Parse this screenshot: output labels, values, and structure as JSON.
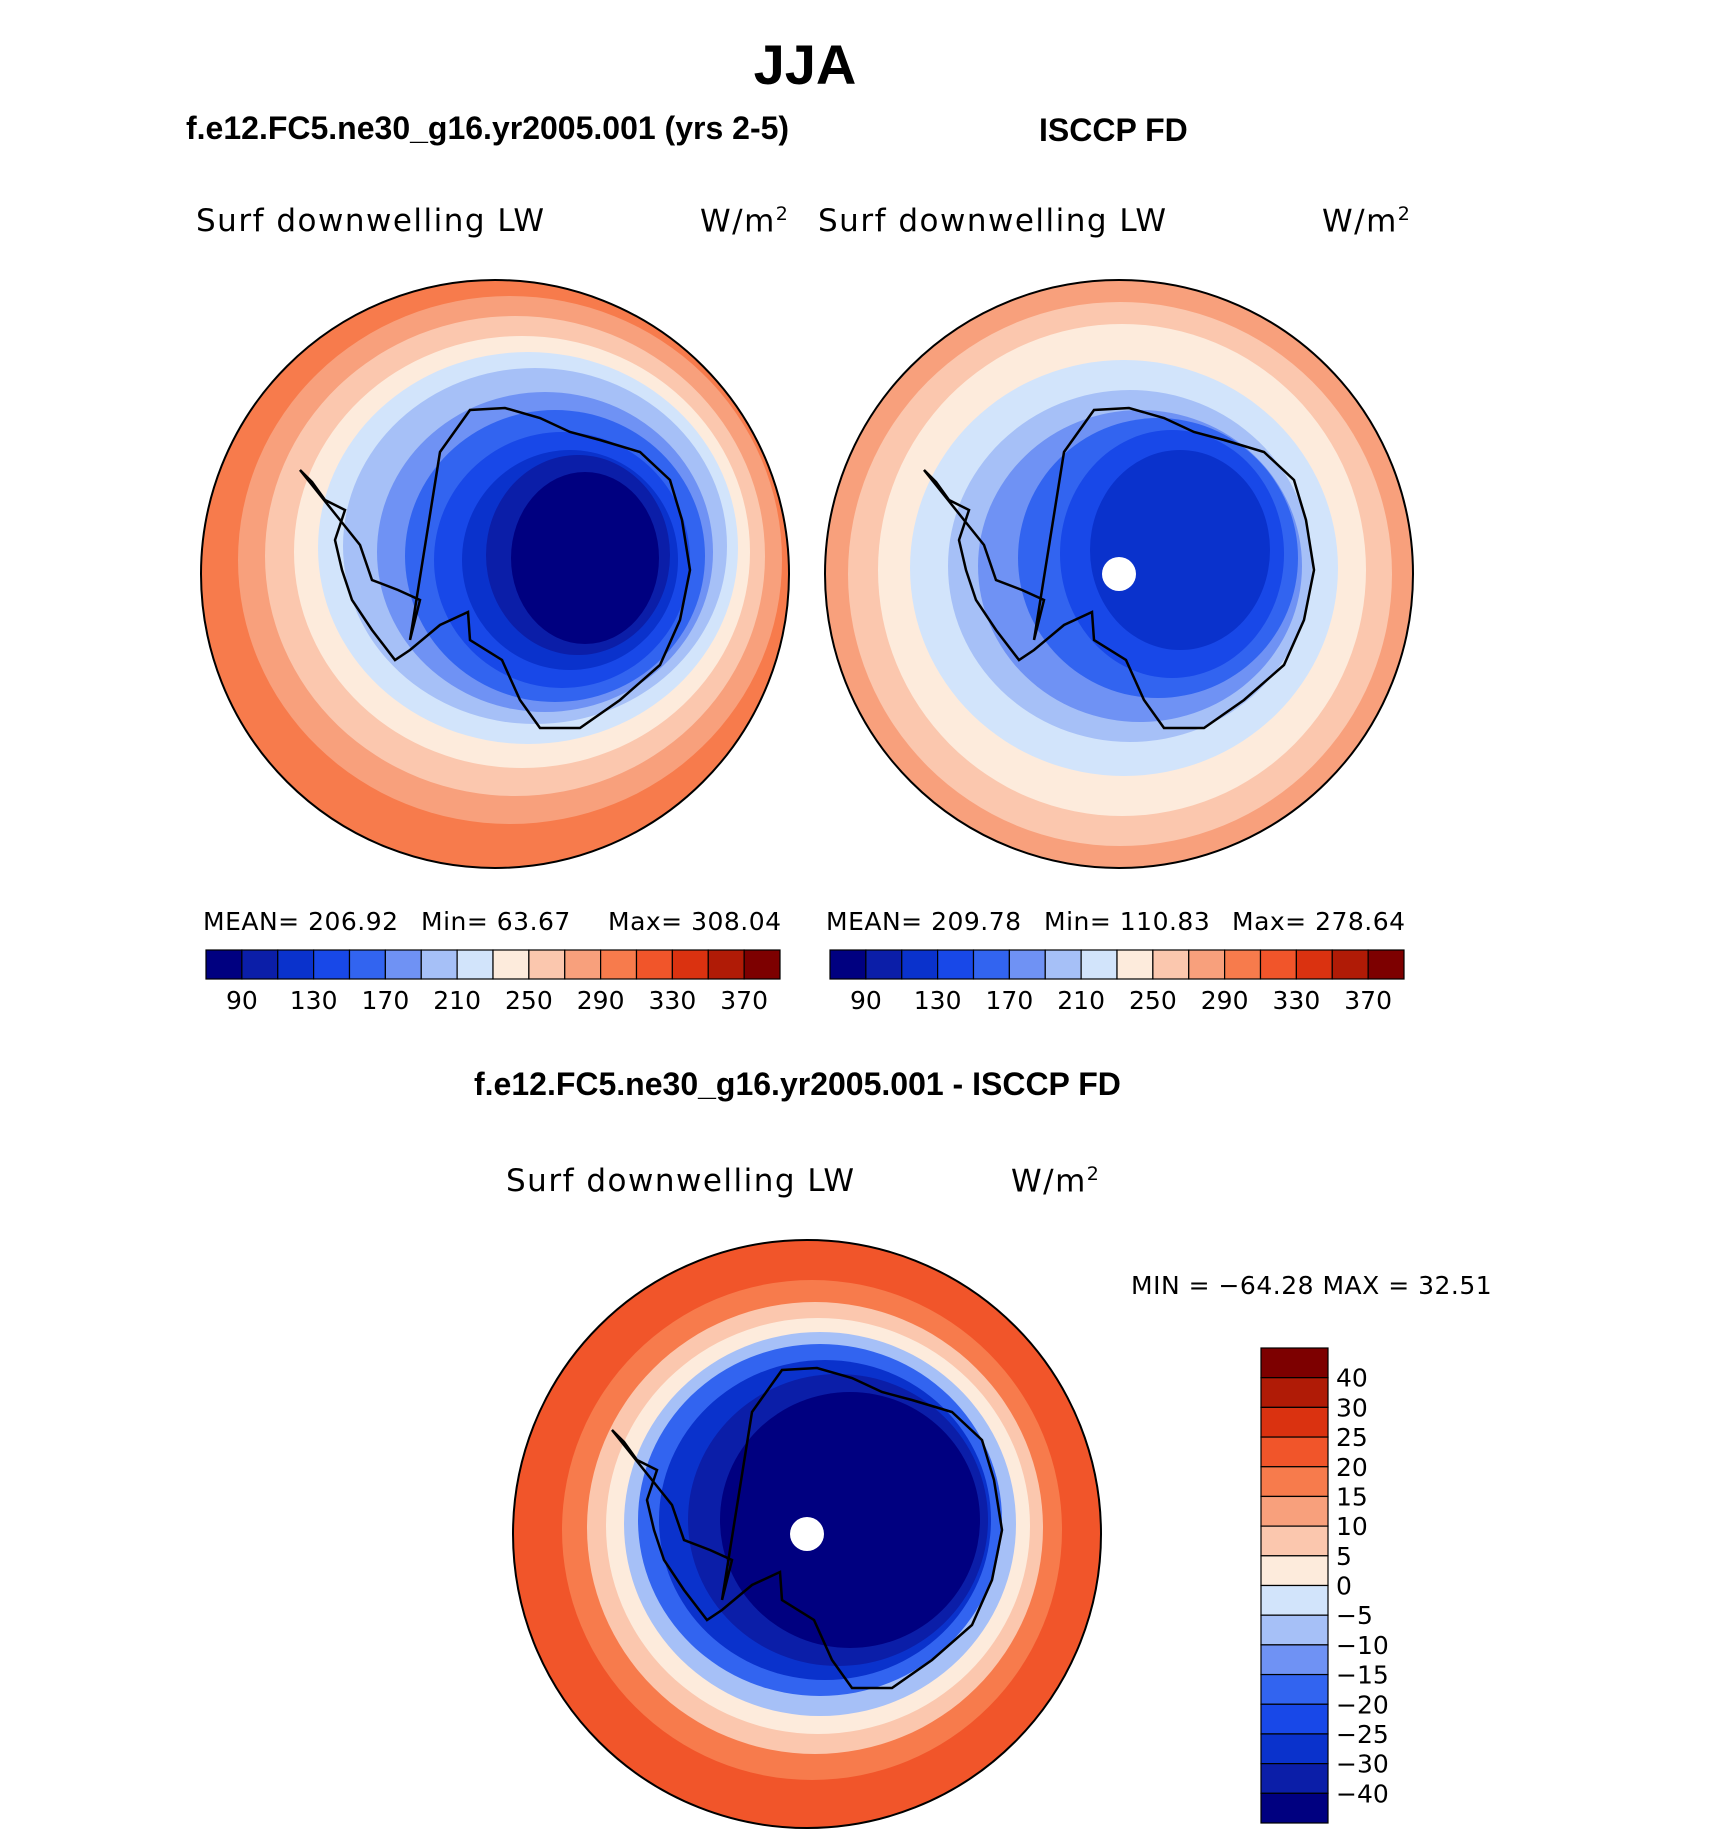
{
  "figure": {
    "season": "JJA",
    "left_title": "f.e12.FC5.ne30_g16.yr2005.001 (yrs 2-5)",
    "right_title": "ISCCP FD",
    "diff_title": "f.e12.FC5.ne30_g16.yr2005.001 - ISCCP FD"
  },
  "panels": {
    "model": {
      "var_label": "Surf downwelling LW",
      "units_base": "W/m",
      "units_exp": "2",
      "mean_text": "MEAN= 206.92",
      "min_text": "Min=  63.67",
      "max_text": "Max= 308.04"
    },
    "obs": {
      "var_label": "Surf downwelling LW",
      "units_base": "W/m",
      "units_exp": "2",
      "mean_text": "MEAN= 209.78",
      "min_text": "Min= 110.83",
      "max_text": "Max= 278.64"
    },
    "diff": {
      "var_label": "Surf downwelling LW",
      "units_base": "W/m",
      "units_exp": "2",
      "minmax_text": "MIN = −64.28 MAX =  32.51"
    }
  },
  "chart_data": [
    {
      "type": "heatmap",
      "projection": "south-polar-stereographic",
      "title": "f.e12.FC5.ne30_g16.yr2005.001 (yrs 2-5)",
      "variable": "Surf downwelling LW",
      "units": "W/m2",
      "mean": 206.92,
      "min": 63.67,
      "max": 308.04,
      "colorbar": {
        "orientation": "horizontal",
        "levels": [
          90,
          110,
          130,
          150,
          170,
          190,
          210,
          230,
          250,
          270,
          290,
          310,
          330,
          350,
          370
        ],
        "tick_labels": [
          "90",
          "130",
          "170",
          "210",
          "250",
          "290",
          "330",
          "370"
        ],
        "colors": [
          "#000080",
          "#0b1ea8",
          "#0a32cc",
          "#1848e8",
          "#3264f0",
          "#6f92f4",
          "#a6c0f7",
          "#d2e4fb",
          "#fdebdc",
          "#fbc7ae",
          "#f8a07c",
          "#f77b4c",
          "#f1552a",
          "#da3210",
          "#b01b06",
          "#7d0000"
        ]
      }
    },
    {
      "type": "heatmap",
      "projection": "south-polar-stereographic",
      "title": "ISCCP FD",
      "variable": "Surf downwelling LW",
      "units": "W/m2",
      "mean": 209.78,
      "min": 110.83,
      "max": 278.64,
      "colorbar": {
        "orientation": "horizontal",
        "levels": [
          90,
          110,
          130,
          150,
          170,
          190,
          210,
          230,
          250,
          270,
          290,
          310,
          330,
          350,
          370
        ],
        "tick_labels": [
          "90",
          "130",
          "170",
          "210",
          "250",
          "290",
          "330",
          "370"
        ],
        "colors": [
          "#000080",
          "#0b1ea8",
          "#0a32cc",
          "#1848e8",
          "#3264f0",
          "#6f92f4",
          "#a6c0f7",
          "#d2e4fb",
          "#fdebdc",
          "#fbc7ae",
          "#f8a07c",
          "#f77b4c",
          "#f1552a",
          "#da3210",
          "#b01b06",
          "#7d0000"
        ]
      }
    },
    {
      "type": "heatmap",
      "projection": "south-polar-stereographic",
      "title": "f.e12.FC5.ne30_g16.yr2005.001 - ISCCP FD",
      "variable": "Surf downwelling LW",
      "units": "W/m2",
      "min": -64.28,
      "max": 32.51,
      "colorbar": {
        "orientation": "vertical",
        "levels": [
          -40,
          -30,
          -25,
          -20,
          -15,
          -10,
          -5,
          0,
          5,
          10,
          15,
          20,
          25,
          30,
          40
        ],
        "tick_labels": [
          "40",
          "30",
          "25",
          "20",
          "15",
          "10",
          "5",
          "0",
          "−5",
          "−10",
          "−15",
          "−20",
          "−25",
          "−30",
          "−40"
        ],
        "colors": [
          "#000080",
          "#0b1ea8",
          "#0a32cc",
          "#1848e8",
          "#3264f0",
          "#6f92f4",
          "#a6c0f7",
          "#d2e4fb",
          "#fdebdc",
          "#fbc7ae",
          "#f8a07c",
          "#f77b4c",
          "#f1552a",
          "#da3210",
          "#b01b06",
          "#7d0000"
        ]
      }
    }
  ]
}
